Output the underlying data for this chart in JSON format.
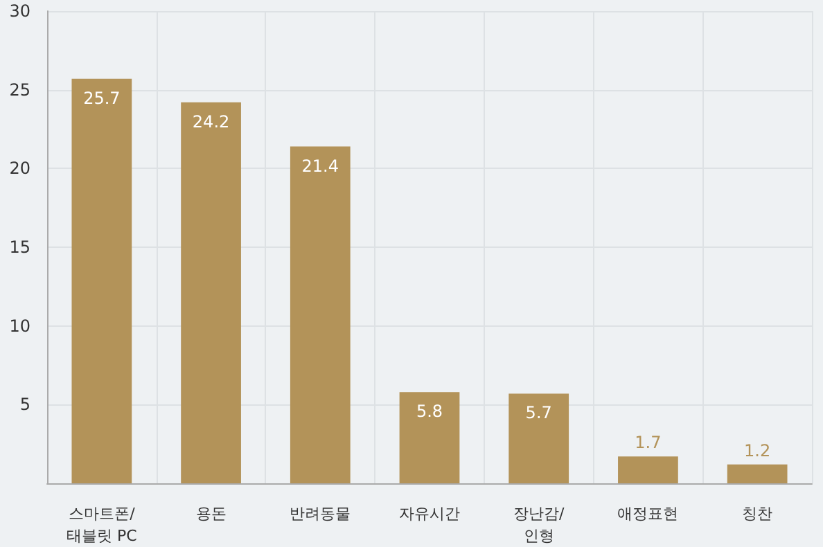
{
  "chart_data": {
    "type": "bar",
    "categories": [
      "스마트폰/태블릿 PC",
      "용돈",
      "반려동물",
      "자유시간",
      "장난감/인형",
      "애정표현",
      "칭찬"
    ],
    "values": [
      25.7,
      24.2,
      21.4,
      5.8,
      5.7,
      1.7,
      1.2
    ],
    "color": "#b39359",
    "ylim": [
      0,
      30
    ],
    "yticks": [
      5,
      10,
      15,
      20,
      25,
      30
    ],
    "grid": true,
    "data_labels": true
  }
}
